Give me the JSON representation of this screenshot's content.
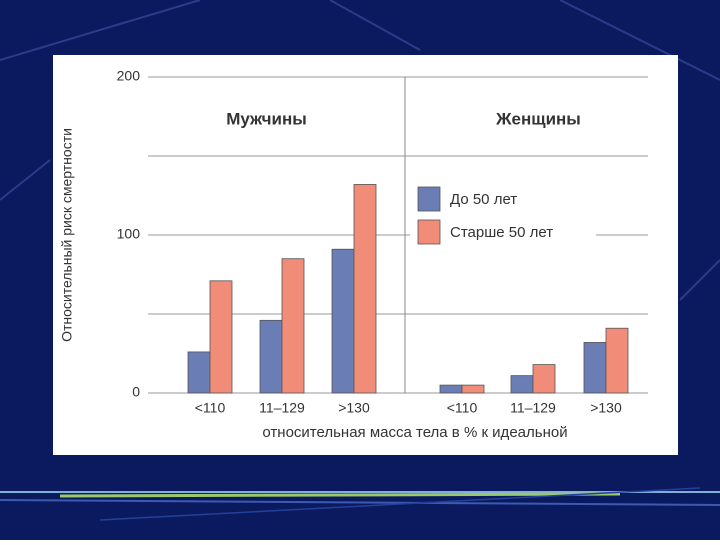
{
  "chart_data": {
    "type": "bar",
    "y_label": "Относительный риск смертности",
    "x_label": "относительная масса тела в % к идеальной",
    "panels": [
      "Мужчины",
      "Женщины"
    ],
    "categories": [
      [
        "<110",
        "11–129",
        ">130"
      ],
      [
        "<110",
        "11–129",
        ">130"
      ]
    ],
    "series": [
      {
        "name": "До 50 лет",
        "color": "#6a7db5",
        "values": [
          [
            26,
            46,
            91
          ],
          [
            5,
            11,
            32
          ]
        ]
      },
      {
        "name": "Старше 50 лет",
        "color": "#f08c78",
        "values": [
          [
            71,
            85,
            132
          ],
          [
            5,
            18,
            41
          ]
        ]
      }
    ],
    "ylim": [
      0,
      200
    ],
    "yticks": [
      0,
      100,
      200
    ],
    "ygrid": [
      0,
      50,
      100,
      150,
      200
    ],
    "grid": true
  }
}
